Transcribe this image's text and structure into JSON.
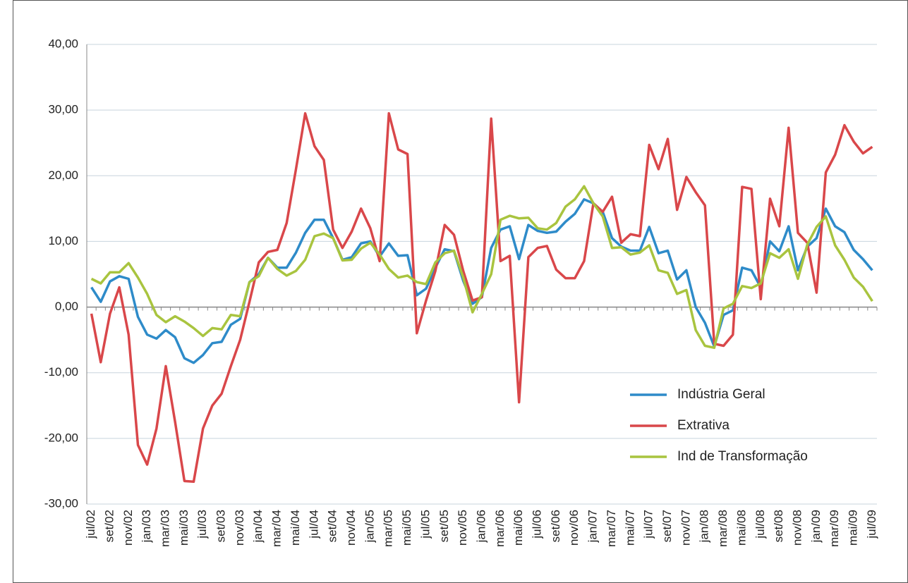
{
  "chart_data": {
    "type": "line",
    "categories": [
      "jul/02",
      null,
      "set/02",
      null,
      "nov/02",
      null,
      "jan/03",
      null,
      "mar/03",
      null,
      "mai/03",
      null,
      "jul/03",
      null,
      "set/03",
      null,
      "nov/03",
      null,
      "jan/04",
      null,
      "mar/04",
      null,
      "mai/04",
      null,
      "jul/04",
      null,
      "set/04",
      null,
      "nov/04",
      null,
      "jan/05",
      null,
      "mar/05",
      null,
      "mai/05",
      null,
      "jul/05",
      null,
      "set/05",
      null,
      "nov/05",
      null,
      "jan/06",
      null,
      "mar/06",
      null,
      "mai/06",
      null,
      "jul/06",
      null,
      "set/06",
      null,
      "nov/06",
      null,
      "jan/07",
      null,
      "mar/07",
      null,
      "mai/07",
      null,
      "jul/07",
      null,
      "set/07",
      null,
      "nov/07",
      null,
      "jan/08",
      null,
      "mar/08",
      null,
      "mai/08",
      null,
      "jul/08",
      null,
      "set/08",
      null,
      "nov/08",
      null,
      "jan/09",
      null,
      "mar/09",
      null,
      "mai/09",
      null,
      "jul/09"
    ],
    "series": [
      {
        "name": "Indústria Geral",
        "color": "#2e8bc9",
        "values": [
          3,
          0.8,
          3.9,
          4.7,
          4.3,
          -1.5,
          -4.2,
          -4.8,
          -3.5,
          -4.6,
          -7.8,
          -8.5,
          -7.3,
          -5.5,
          -5.3,
          -2.7,
          -1.8,
          3.8,
          5,
          7.5,
          6,
          6,
          8.3,
          11.3,
          13.3,
          13.3,
          10.5,
          7.2,
          7.6,
          9.7,
          10,
          7.7,
          9.7,
          7.8,
          7.9,
          1.8,
          2.8,
          6,
          8.8,
          8.5,
          4,
          0.5,
          1.5,
          9,
          11.8,
          12.3,
          7.3,
          12.5,
          11.6,
          11.3,
          11.5,
          13,
          14.2,
          16.4,
          15.8,
          14.5,
          10.5,
          9.2,
          8.6,
          8.6,
          12.2,
          8.2,
          8.6,
          4.2,
          5.6,
          0,
          -2.4,
          -6,
          -1.2,
          -0.5,
          6,
          5.6,
          3,
          10,
          8.5,
          12.3,
          5.6,
          9.2,
          10.5,
          15,
          12.3,
          11.4,
          8.7,
          7.3,
          5.6
        ]
      },
      {
        "name": "Extrativa",
        "color": "#d9474a",
        "values": [
          -1,
          -8.4,
          -1,
          3,
          -4.2,
          -21,
          -24,
          -18.5,
          -9,
          -17.5,
          -26.5,
          -26.6,
          -18.5,
          -15,
          -13.2,
          -9,
          -5,
          0.8,
          6.8,
          8.4,
          8.7,
          12.8,
          21,
          29.5,
          24.5,
          22.4,
          11.8,
          9,
          11.5,
          15,
          12,
          7,
          29.5,
          24,
          23.3,
          -4,
          1,
          5.5,
          12.5,
          11,
          5.5,
          1,
          1.5,
          28.7,
          7,
          7.8,
          -14.5,
          7.6,
          9,
          9.3,
          5.7,
          4.4,
          4.4,
          7,
          15.8,
          14.5,
          16.8,
          9.8,
          11.1,
          10.8,
          24.7,
          21,
          25.6,
          14.8,
          19.8,
          17.5,
          15.5,
          -5.6,
          -5.9,
          -4.2,
          18.3,
          18,
          1.2,
          16.5,
          12.3,
          27.3,
          11.3,
          9.8,
          2.2,
          20.5,
          23.2,
          27.7,
          25.2,
          23.4,
          24.4
        ]
      },
      {
        "name": "Ind de Transformação",
        "color": "#a9c43f",
        "values": [
          4.3,
          3.6,
          5.3,
          5.3,
          6.7,
          4.5,
          2,
          -1.2,
          -2.3,
          -1.4,
          -2.2,
          -3.2,
          -4.4,
          -3.2,
          -3.4,
          -1.2,
          -1.4,
          3.8,
          4.7,
          7.5,
          5.8,
          4.8,
          5.5,
          7.2,
          10.8,
          11.2,
          10.5,
          7.1,
          7.2,
          8.9,
          9.8,
          8,
          5.8,
          4.5,
          4.8,
          3.8,
          3.5,
          6.8,
          8.2,
          8.6,
          4.5,
          -0.8,
          2,
          5,
          13.3,
          13.9,
          13.5,
          13.6,
          12,
          11.8,
          12.8,
          15.3,
          16.4,
          18.4,
          15.8,
          13.8,
          9,
          9.1,
          8,
          8.3,
          9.4,
          5.6,
          5.2,
          2,
          2.6,
          -3.5,
          -5.9,
          -6.2,
          -0.2,
          0.5,
          3.2,
          2.9,
          3.6,
          8.2,
          7.5,
          8.8,
          4.3,
          9.5,
          12.2,
          13.8,
          9.4,
          7.2,
          4.5,
          3.1,
          0.9
        ]
      }
    ],
    "ylim": [
      -30,
      40
    ],
    "yticks": [
      {
        "value": -30,
        "label": "-30,00"
      },
      {
        "value": -20,
        "label": "-20,00"
      },
      {
        "value": -10,
        "label": "-10,00"
      },
      {
        "value": 0,
        "label": "0,00"
      },
      {
        "value": 10,
        "label": "10,00"
      },
      {
        "value": 20,
        "label": "20,00"
      },
      {
        "value": 30,
        "label": "30,00"
      },
      {
        "value": 40,
        "label": "40,00"
      }
    ],
    "grid": true,
    "legend": "lower right"
  }
}
